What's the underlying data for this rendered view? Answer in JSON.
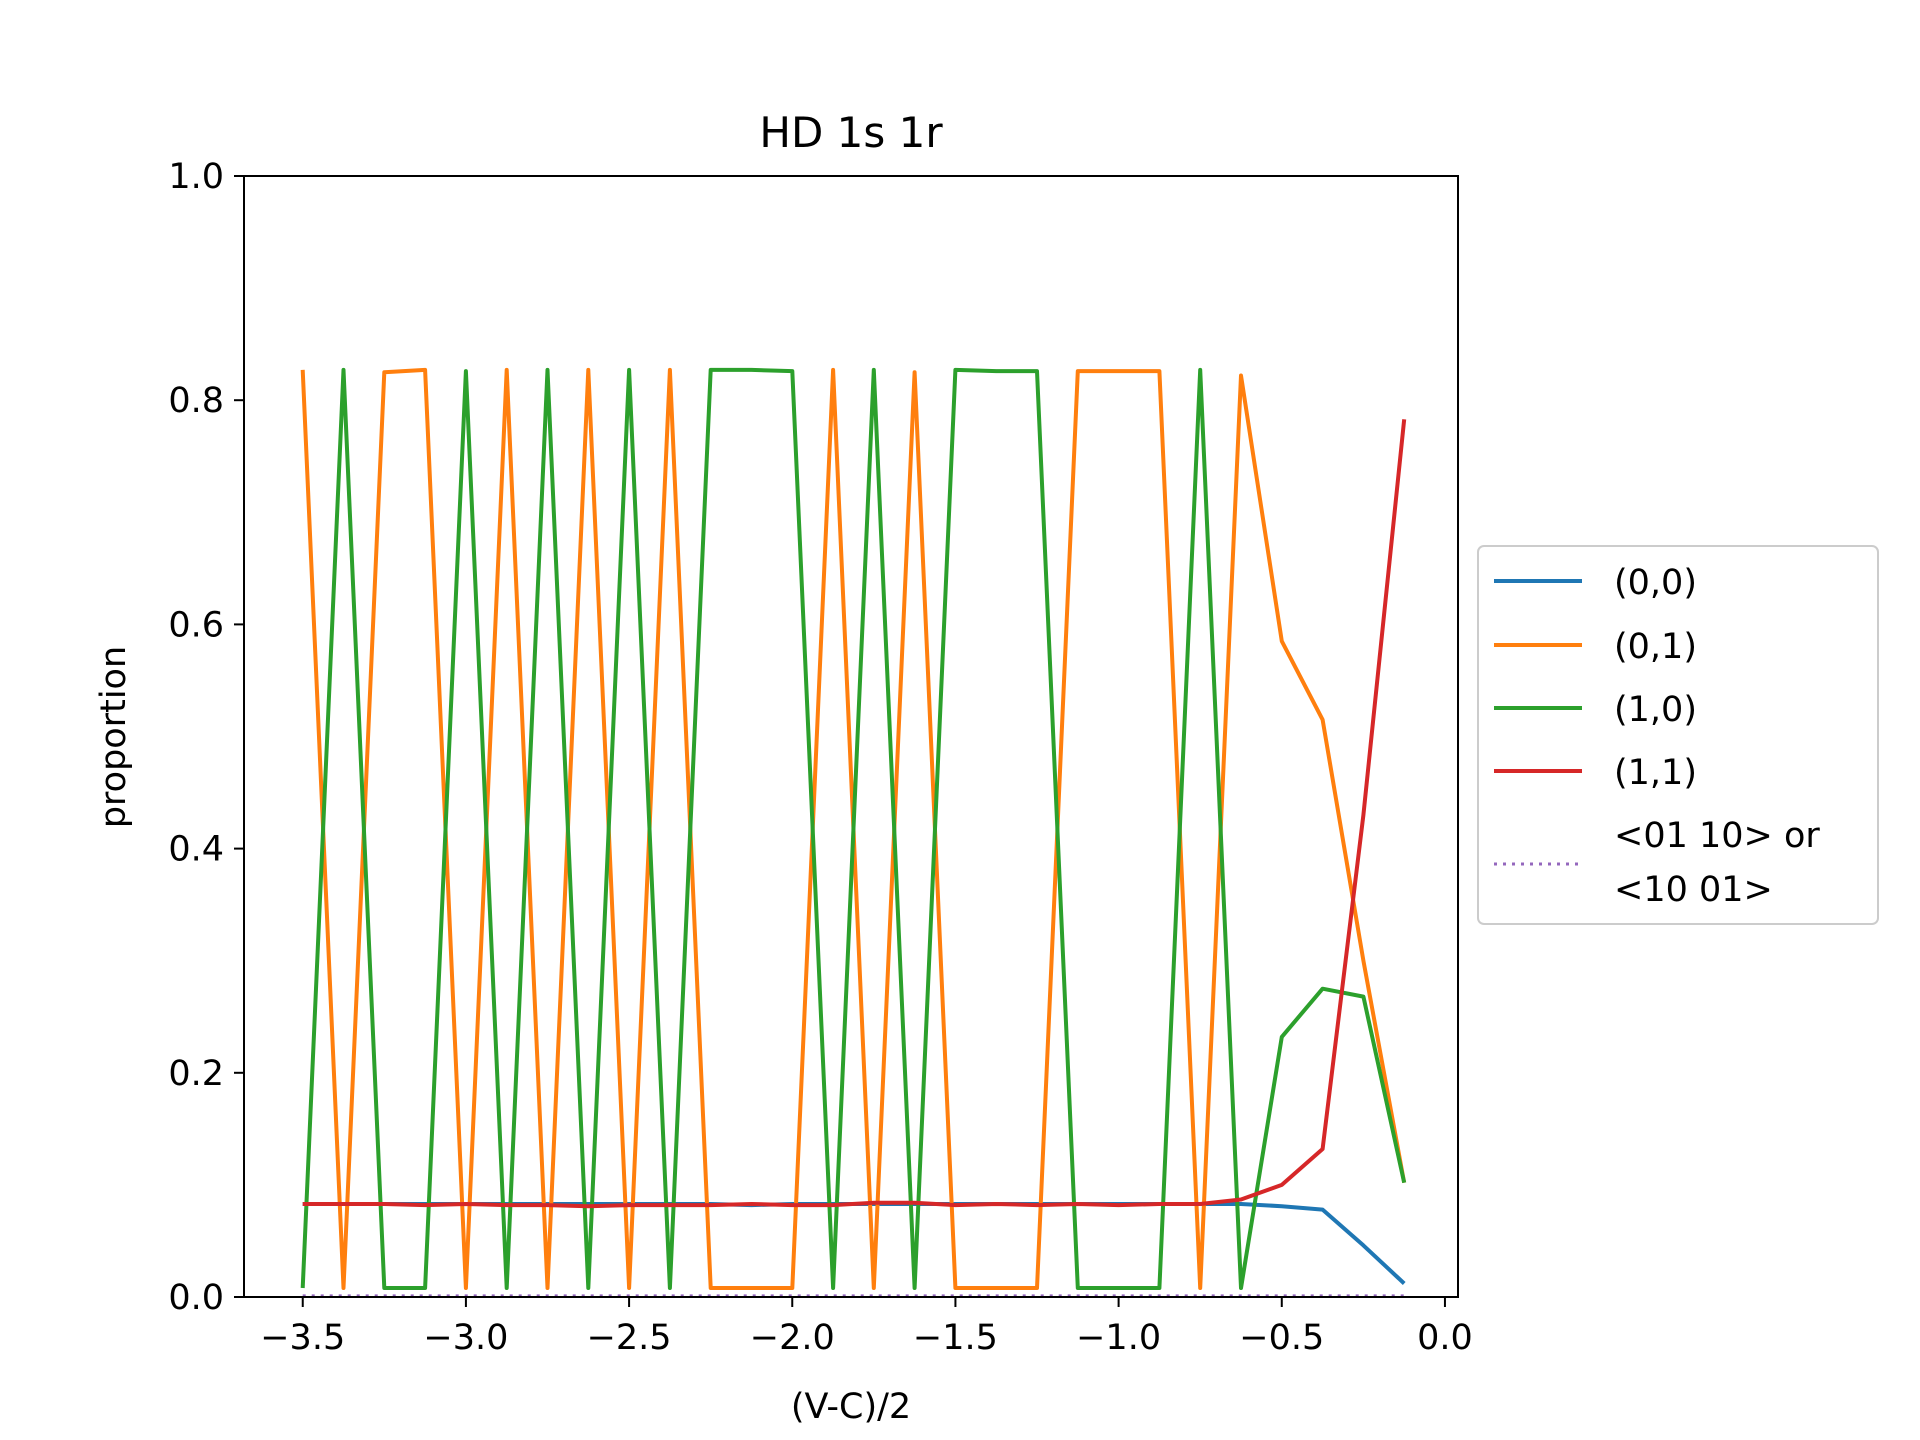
{
  "chart_data": {
    "type": "line",
    "title": "HD 1s 1r",
    "xlabel": "(V-C)/2",
    "ylabel": "proportion",
    "xlim": [
      -3.68,
      0.04
    ],
    "ylim": [
      0.0,
      1.0
    ],
    "grid": false,
    "legend_position": "right-outside",
    "xticks": [
      -3.5,
      -3.0,
      -2.5,
      -2.0,
      -1.5,
      -1.0,
      -0.5,
      0.0
    ],
    "xtick_labels": [
      "−3.5",
      "−3.0",
      "−2.5",
      "−2.0",
      "−1.5",
      "−1.0",
      "−0.5",
      "0.0"
    ],
    "yticks": [
      0.0,
      0.2,
      0.4,
      0.6,
      0.8,
      1.0
    ],
    "ytick_labels": [
      "0.0",
      "0.2",
      "0.4",
      "0.6",
      "0.8",
      "1.0"
    ],
    "x": [
      -3.5,
      -3.375,
      -3.25,
      -3.125,
      -3.0,
      -2.875,
      -2.75,
      -2.625,
      -2.5,
      -2.375,
      -2.25,
      -2.125,
      -2.0,
      -1.875,
      -1.75,
      -1.625,
      -1.5,
      -1.375,
      -1.25,
      -1.125,
      -1.0,
      -0.875,
      -0.75,
      -0.625,
      -0.5,
      -0.375,
      -0.25,
      -0.125
    ],
    "series": [
      {
        "name": "(0,0)",
        "color": "#1f77b4",
        "style": "solid",
        "values": [
          0.083,
          0.083,
          0.083,
          0.083,
          0.083,
          0.083,
          0.083,
          0.083,
          0.083,
          0.083,
          0.083,
          0.082,
          0.083,
          0.083,
          0.083,
          0.083,
          0.083,
          0.083,
          0.083,
          0.083,
          0.083,
          0.083,
          0.083,
          0.083,
          0.081,
          0.078,
          0.046,
          0.012
        ]
      },
      {
        "name": "(0,1)",
        "color": "#ff7f0e",
        "style": "solid",
        "values": [
          0.827,
          0.008,
          0.825,
          0.827,
          0.008,
          0.827,
          0.008,
          0.827,
          0.008,
          0.827,
          0.008,
          0.008,
          0.008,
          0.827,
          0.008,
          0.825,
          0.008,
          0.008,
          0.008,
          0.826,
          0.826,
          0.826,
          0.008,
          0.822,
          0.585,
          0.515,
          0.3,
          0.102
        ]
      },
      {
        "name": "(1,0)",
        "color": "#2ca02c",
        "style": "solid",
        "values": [
          0.008,
          0.827,
          0.008,
          0.008,
          0.826,
          0.008,
          0.827,
          0.008,
          0.827,
          0.008,
          0.827,
          0.827,
          0.826,
          0.008,
          0.827,
          0.008,
          0.827,
          0.826,
          0.826,
          0.008,
          0.008,
          0.008,
          0.827,
          0.008,
          0.232,
          0.275,
          0.268,
          0.102
        ]
      },
      {
        "name": "(1,1)",
        "color": "#d62728",
        "style": "solid",
        "values": [
          0.083,
          0.083,
          0.083,
          0.082,
          0.083,
          0.082,
          0.082,
          0.081,
          0.082,
          0.082,
          0.082,
          0.083,
          0.082,
          0.082,
          0.084,
          0.084,
          0.082,
          0.083,
          0.082,
          0.083,
          0.082,
          0.083,
          0.083,
          0.087,
          0.1,
          0.132,
          0.43,
          0.783
        ]
      },
      {
        "name": "<01 10> or\n<10 01>",
        "name_lines": [
          "<01 10> or",
          "<10 01>"
        ],
        "color": "#9467bd",
        "style": "dotted",
        "values": [
          0.001,
          0.001,
          0.001,
          0.001,
          0.001,
          0.001,
          0.001,
          0.001,
          0.001,
          0.001,
          0.001,
          0.001,
          0.001,
          0.001,
          0.001,
          0.001,
          0.001,
          0.001,
          0.001,
          0.001,
          0.001,
          0.001,
          0.001,
          0.001,
          0.001,
          0.001,
          0.001,
          0.001
        ]
      }
    ]
  }
}
